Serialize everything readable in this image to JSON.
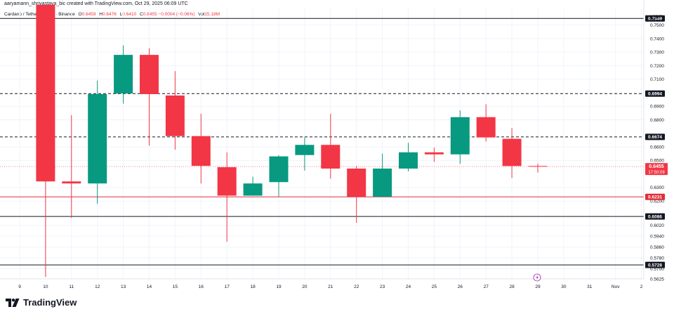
{
  "header": {
    "attribution": "aaryamann_shrivastava_bic created with TradingView.com, Oct 29, 2025 06:09 UTC"
  },
  "symbol": {
    "name": "Cardano / TetherUS · 1D · Binance",
    "open_label": "O",
    "open": "0.6459",
    "high_label": "H",
    "high": "0.6476",
    "low_label": "L",
    "low": "0.6410",
    "close_label": "C",
    "close": "0.6455",
    "change": "−0.0004 (−0.06%)",
    "vol_label": "Vol",
    "vol": "15.18M"
  },
  "branding": {
    "logo_text": "TradingView"
  },
  "colors": {
    "up": "#089981",
    "down": "#f23645",
    "support": "#e02e3b",
    "level": "#131722",
    "grid": "#f0f3fa"
  },
  "chart_data": {
    "type": "candlestick",
    "currency_label": "USDT",
    "ylim": [
      0.5625,
      0.7618
    ],
    "y_ticks": [
      0.75,
      0.74,
      0.73,
      0.72,
      0.71,
      0.69,
      0.68,
      0.66,
      0.65,
      0.63,
      0.62,
      0.602,
      0.594,
      0.586,
      0.578,
      0.57,
      0.5625
    ],
    "x_ticks": [
      "9",
      "10",
      "11",
      "12",
      "13",
      "14",
      "15",
      "16",
      "17",
      "18",
      "19",
      "20",
      "21",
      "22",
      "23",
      "24",
      "25",
      "26",
      "27",
      "28",
      "29",
      "30",
      "31",
      "Nov",
      "2"
    ],
    "candles": [
      {
        "date": "10",
        "open": 0.765,
        "high": 0.765,
        "low": 0.564,
        "close": 0.6345
      },
      {
        "date": "11",
        "open": 0.6345,
        "high": 0.6835,
        "low": 0.6075,
        "close": 0.633
      },
      {
        "date": "12",
        "open": 0.633,
        "high": 0.709,
        "low": 0.618,
        "close": 0.699
      },
      {
        "date": "13",
        "open": 0.6995,
        "high": 0.735,
        "low": 0.692,
        "close": 0.728
      },
      {
        "date": "14",
        "open": 0.728,
        "high": 0.733,
        "low": 0.661,
        "close": 0.699
      },
      {
        "date": "15",
        "open": 0.698,
        "high": 0.716,
        "low": 0.658,
        "close": 0.668
      },
      {
        "date": "16",
        "open": 0.668,
        "high": 0.6845,
        "low": 0.633,
        "close": 0.646
      },
      {
        "date": "17",
        "open": 0.645,
        "high": 0.656,
        "low": 0.59,
        "close": 0.624
      },
      {
        "date": "18",
        "open": 0.624,
        "high": 0.638,
        "low": 0.624,
        "close": 0.633
      },
      {
        "date": "19",
        "open": 0.634,
        "high": 0.654,
        "low": 0.623,
        "close": 0.653
      },
      {
        "date": "20",
        "open": 0.654,
        "high": 0.667,
        "low": 0.6425,
        "close": 0.6615
      },
      {
        "date": "21",
        "open": 0.6615,
        "high": 0.6845,
        "low": 0.6365,
        "close": 0.644
      },
      {
        "date": "22",
        "open": 0.644,
        "high": 0.646,
        "low": 0.604,
        "close": 0.6231
      },
      {
        "date": "23",
        "open": 0.6231,
        "high": 0.655,
        "low": 0.6231,
        "close": 0.644
      },
      {
        "date": "24",
        "open": 0.644,
        "high": 0.663,
        "low": 0.642,
        "close": 0.656
      },
      {
        "date": "25",
        "open": 0.656,
        "high": 0.6595,
        "low": 0.649,
        "close": 0.6545
      },
      {
        "date": "26",
        "open": 0.6545,
        "high": 0.687,
        "low": 0.6475,
        "close": 0.682
      },
      {
        "date": "27",
        "open": 0.682,
        "high": 0.6915,
        "low": 0.664,
        "close": 0.667
      },
      {
        "date": "28",
        "open": 0.666,
        "high": 0.674,
        "low": 0.637,
        "close": 0.6459
      },
      {
        "date": "29",
        "open": 0.6459,
        "high": 0.6476,
        "low": 0.641,
        "close": 0.6455
      }
    ],
    "levels": [
      {
        "value": 0.7549,
        "label": "0.7549",
        "style": "solid",
        "color": "#131722"
      },
      {
        "value": 0.6994,
        "label": "0.6994",
        "style": "dashed",
        "color": "#131722"
      },
      {
        "value": 0.6674,
        "label": "0.6674",
        "style": "dashed",
        "color": "#131722"
      },
      {
        "value": 0.6231,
        "label": "0.6231",
        "style": "solid",
        "color": "#e02e3b"
      },
      {
        "value": 0.6086,
        "label": "0.6086",
        "style": "solid",
        "color": "#131722"
      },
      {
        "value": 0.5728,
        "label": "0.5728",
        "style": "solid",
        "color": "#131722"
      }
    ],
    "last_price": {
      "value": 0.6455,
      "label": "0.6455",
      "countdown": "17:50:09"
    },
    "grid": true,
    "legend": "none"
  }
}
